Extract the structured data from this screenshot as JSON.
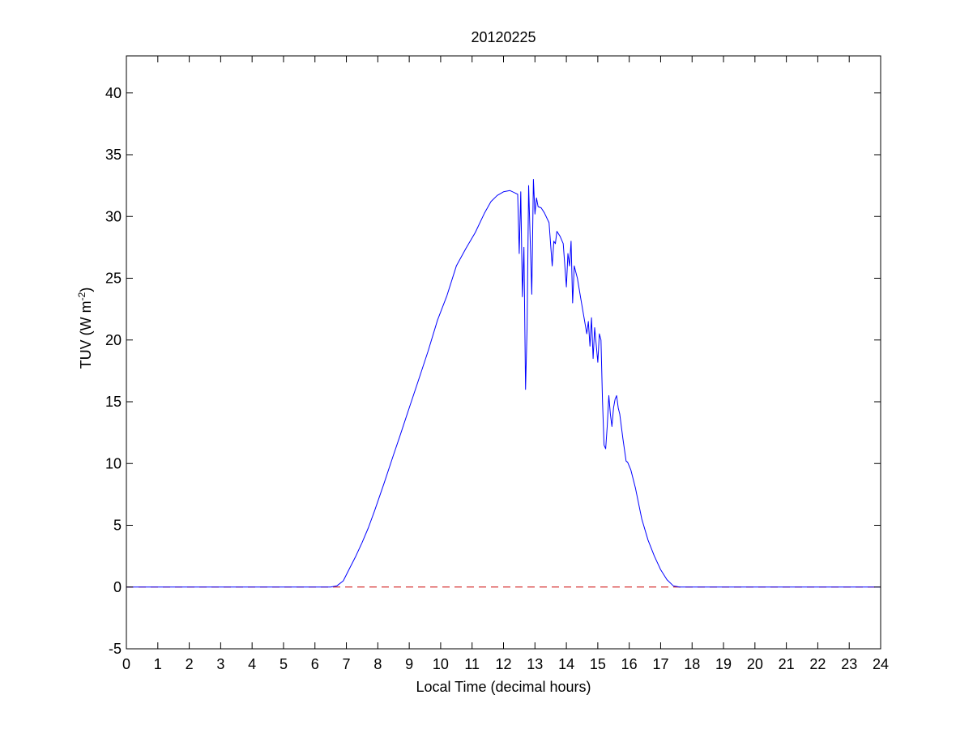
{
  "chart_data": {
    "type": "line",
    "title": "20120225",
    "xlabel": "Local Time (decimal hours)",
    "ylabel_main": "TUV (W m",
    "ylabel_sup": "-2",
    "ylabel_close": ")",
    "xlim": [
      0,
      24
    ],
    "ylim": [
      -5,
      43
    ],
    "xticks": [
      0,
      1,
      2,
      3,
      4,
      5,
      6,
      7,
      8,
      9,
      10,
      11,
      12,
      13,
      14,
      15,
      16,
      17,
      18,
      19,
      20,
      21,
      22,
      23,
      24
    ],
    "yticks": [
      -5,
      0,
      5,
      10,
      15,
      20,
      25,
      30,
      35,
      40
    ],
    "grid": false,
    "colors": {
      "series": "#0000ff",
      "baseline": "#cc0000",
      "axes": "#000000"
    },
    "series": [
      {
        "style": "solid",
        "x": [
          0,
          6.5,
          6.7,
          6.9,
          7.1,
          7.3,
          7.5,
          7.7,
          7.9,
          8.2,
          8.5,
          8.7,
          9,
          9.3,
          9.6,
          9.9,
          10.2,
          10.5,
          10.8,
          11.1,
          11.4,
          11.6,
          11.8,
          12,
          12.2,
          12.45,
          12.5,
          12.55,
          12.6,
          12.65,
          12.7,
          12.75,
          12.8,
          12.9,
          12.95,
          13,
          13.05,
          13.1,
          13.2,
          13.3,
          13.45,
          13.55,
          13.6,
          13.65,
          13.7,
          13.8,
          13.9,
          14,
          14.05,
          14.1,
          14.15,
          14.2,
          14.25,
          14.3,
          14.35,
          14.45,
          14.55,
          14.65,
          14.7,
          14.75,
          14.8,
          14.85,
          14.9,
          15,
          15.05,
          15.1,
          15.15,
          15.2,
          15.25,
          15.3,
          15.35,
          15.4,
          15.45,
          15.5,
          15.55,
          15.6,
          15.65,
          15.7,
          15.8,
          15.9,
          15.95,
          16.05,
          16.2,
          16.4,
          16.6,
          16.8,
          17,
          17.2,
          17.4,
          17.6,
          17.8,
          18,
          18.2,
          18.5,
          24
        ],
        "y": [
          0,
          0,
          0.1,
          0.5,
          1.5,
          2.5,
          3.6,
          4.8,
          6.2,
          8.4,
          10.7,
          12.2,
          14.5,
          16.8,
          19.1,
          21.6,
          23.6,
          26,
          27.4,
          28.7,
          30.3,
          31.2,
          31.7,
          32,
          32.1,
          31.8,
          27,
          32,
          23.5,
          27.5,
          16,
          21,
          32.5,
          23.7,
          33,
          30.2,
          31.5,
          30.8,
          30.7,
          30.3,
          29.5,
          26,
          28,
          27.8,
          28.8,
          28.4,
          27.8,
          24.3,
          27,
          26,
          28,
          23,
          26,
          25.5,
          25,
          23.5,
          22,
          20.5,
          21.5,
          19.5,
          21.8,
          18.5,
          21,
          18.2,
          20.5,
          20,
          15,
          11.5,
          11.2,
          13,
          15.5,
          14,
          13,
          14.5,
          15.2,
          15.5,
          14.5,
          14,
          12,
          10.2,
          10.1,
          9.5,
          8,
          5.5,
          3.8,
          2.5,
          1.4,
          0.6,
          0.1,
          0,
          0,
          0,
          0,
          0,
          0
        ]
      },
      {
        "style": "dashed",
        "x": [
          0,
          24
        ],
        "y": [
          0,
          0
        ]
      }
    ]
  }
}
